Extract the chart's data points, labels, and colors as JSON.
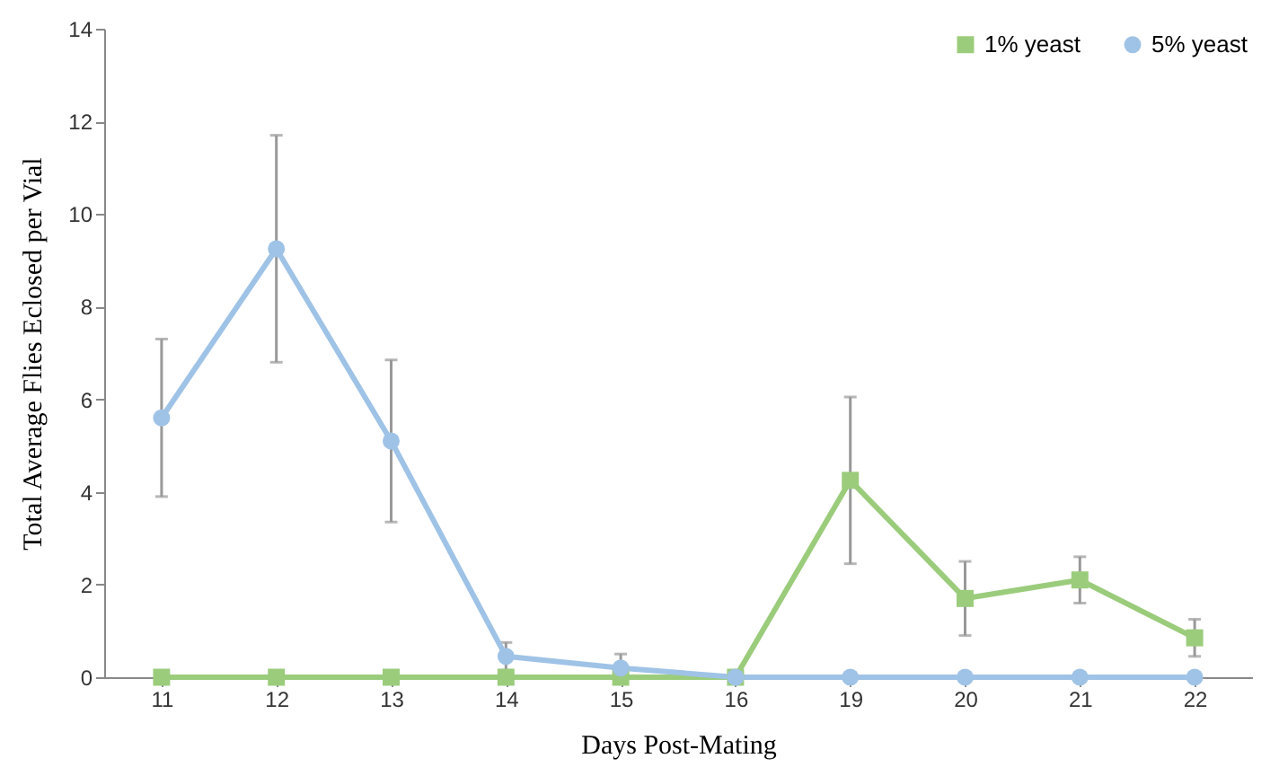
{
  "chart_data": {
    "type": "line",
    "xlabel": "Days Post-Mating",
    "ylabel": "Total Average Flies Eclosed per Vial",
    "categories": [
      "11",
      "12",
      "13",
      "14",
      "15",
      "16",
      "19",
      "20",
      "21",
      "22"
    ],
    "series": [
      {
        "name": "1% yeast",
        "color": "#9bcc7c",
        "marker": "square",
        "values": [
          0,
          0,
          0,
          0,
          0,
          0,
          4.25,
          1.7,
          2.1,
          0.85
        ],
        "errors": [
          null,
          null,
          null,
          null,
          null,
          null,
          1.8,
          0.8,
          0.5,
          0.4
        ]
      },
      {
        "name": "5% yeast",
        "color": "#9fc3e6",
        "marker": "circle",
        "values": [
          5.6,
          9.25,
          5.1,
          0.45,
          0.2,
          0,
          0,
          0,
          0,
          0
        ],
        "errors": [
          1.7,
          2.45,
          1.75,
          0.3,
          0.3,
          null,
          null,
          null,
          null,
          null
        ]
      }
    ],
    "ylim": [
      0,
      14
    ],
    "yticks": [
      0,
      2,
      4,
      6,
      8,
      10,
      12,
      14
    ],
    "grid": false,
    "legend": "top right"
  }
}
